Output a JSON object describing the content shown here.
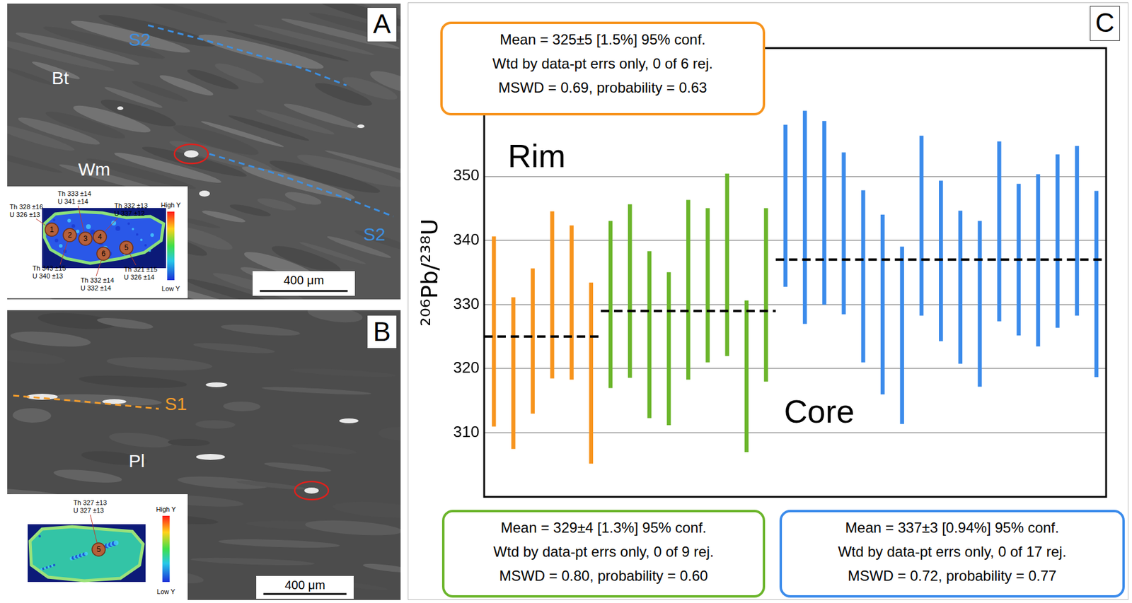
{
  "panels": [
    {
      "letter": "A",
      "labels": [
        {
          "text": "S2",
          "color": "#3d8fe0"
        },
        {
          "text": "Bt",
          "color": "#ffffff"
        },
        {
          "text": "Wm",
          "color": "#ffffff"
        },
        {
          "text": "S2",
          "color": "#3d8fe0"
        }
      ],
      "scale_bar": "400 μm",
      "inset": {
        "spots": [
          {
            "number": 1,
            "text": [
              "Th 328 ±16",
              "U 326 ±13"
            ]
          },
          {
            "number": 2,
            "text": [
              "Th 343 ±15",
              "U 340 ±13"
            ]
          },
          {
            "number": 3,
            "text": [
              "Th 333 ±14",
              "U 341 ±14"
            ]
          },
          {
            "number": 4,
            "text": [
              "Th 332 ±13",
              "U 337 ±12"
            ]
          },
          {
            "number": 5,
            "text": [
              "Th 321 ±15",
              "U 326 ±14"
            ]
          },
          {
            "number": 6,
            "text": [
              "Th 332 ±14",
              "U 332 ±14"
            ]
          }
        ],
        "color_bar": [
          "High Y",
          "Low Y"
        ]
      }
    },
    {
      "letter": "B",
      "labels": [
        {
          "text": "S1",
          "color": "#f39c2b"
        },
        {
          "text": "Pl",
          "color": "#ffffff"
        }
      ],
      "scale_bar": "400 μm",
      "inset": {
        "spots": [
          {
            "number": 5,
            "text": [
              "Th 327 ±13",
              "U 327 ±13"
            ]
          }
        ],
        "color_bar": [
          "High Y",
          "Low Y"
        ]
      }
    }
  ],
  "chart_data": {
    "type": "errorbar",
    "letter": "C",
    "y_label": "²⁰⁶Pb/²³⁸U",
    "annotations": [
      "Rim",
      "Core"
    ],
    "categories": [
      null,
      null,
      null,
      null,
      null,
      null,
      null,
      null,
      null,
      null,
      null,
      null,
      null,
      null,
      null,
      null,
      null,
      null,
      null,
      null,
      null,
      null,
      null,
      null,
      null,
      null,
      null,
      null,
      null,
      null,
      null,
      null
    ],
    "ylim": [
      300,
      370
    ],
    "yticks": [
      310,
      320,
      330,
      340,
      350
    ],
    "grid": true,
    "tick_labels": "y",
    "series": [
      {
        "color": "#f7941d",
        "values": [
          325.8,
          319.3,
          324.3,
          331.5,
          330.3,
          319.3,
          null,
          null,
          null,
          null,
          null,
          null,
          null,
          null,
          null,
          null,
          null,
          null,
          null,
          null,
          null,
          null,
          null,
          null,
          null,
          null,
          null,
          null,
          null,
          null,
          null,
          null
        ],
        "errors": [
          14.8,
          11.8,
          11.3,
          13,
          12,
          14.1,
          null,
          null,
          null,
          null,
          null,
          null,
          null,
          null,
          null,
          null,
          null,
          null,
          null,
          null,
          null,
          null,
          null,
          null,
          null,
          null,
          null,
          null,
          null,
          null,
          null,
          null
        ],
        "mean": 325,
        "box": [
          "Mean = 325±5 [1.5%] 95% conf.",
          "Wtd by data-pt errs only, 0 of 6 rej.",
          "MSWD = 0.69, probability = 0.63"
        ]
      },
      {
        "color": "#6bb52b",
        "values": [
          null,
          null,
          null,
          null,
          null,
          null,
          330,
          332.1,
          325.3,
          323.1,
          332.3,
          333,
          336.2,
          318.8,
          331.5,
          null,
          null,
          null,
          null,
          null,
          null,
          null,
          null,
          null,
          null,
          null,
          null,
          null,
          null,
          null,
          null,
          null
        ],
        "errors": [
          null,
          null,
          null,
          null,
          null,
          null,
          13,
          13.5,
          13,
          11.9,
          14,
          12,
          14.2,
          11.8,
          13.5,
          null,
          null,
          null,
          null,
          null,
          null,
          null,
          null,
          null,
          null,
          null,
          null,
          null,
          null,
          null,
          null,
          null
        ],
        "mean": 329,
        "box": [
          "Mean = 329±4 [1.3%] 95% conf.",
          "Wtd by data-pt errs only, 0 of 9 rej.",
          "MSWD = 0.80, probability = 0.60"
        ]
      },
      {
        "color": "#3b8beb",
        "values": [
          null,
          null,
          null,
          null,
          null,
          null,
          null,
          null,
          null,
          null,
          null,
          null,
          null,
          null,
          null,
          345.4,
          343.6,
          344.3,
          341.1,
          334.4,
          330,
          325.2,
          342.3,
          336.8,
          332.7,
          330.1,
          341.4,
          337,
          336.9,
          339.9,
          341.5,
          333.2
        ],
        "errors": [
          null,
          null,
          null,
          null,
          null,
          null,
          null,
          null,
          null,
          null,
          null,
          null,
          null,
          null,
          null,
          12.6,
          16.6,
          14.3,
          12.6,
          13.4,
          14,
          13.8,
          14,
          12.5,
          11.9,
          12.9,
          14,
          11.8,
          13.4,
          13.5,
          13.2,
          14.5
        ],
        "mean": 337,
        "box": [
          "Mean = 337±3 [0.94%] 95% conf.",
          "Wtd by data-pt errs only, 0 of 17 rej.",
          "MSWD = 0.72, probability = 0.77"
        ]
      }
    ]
  }
}
